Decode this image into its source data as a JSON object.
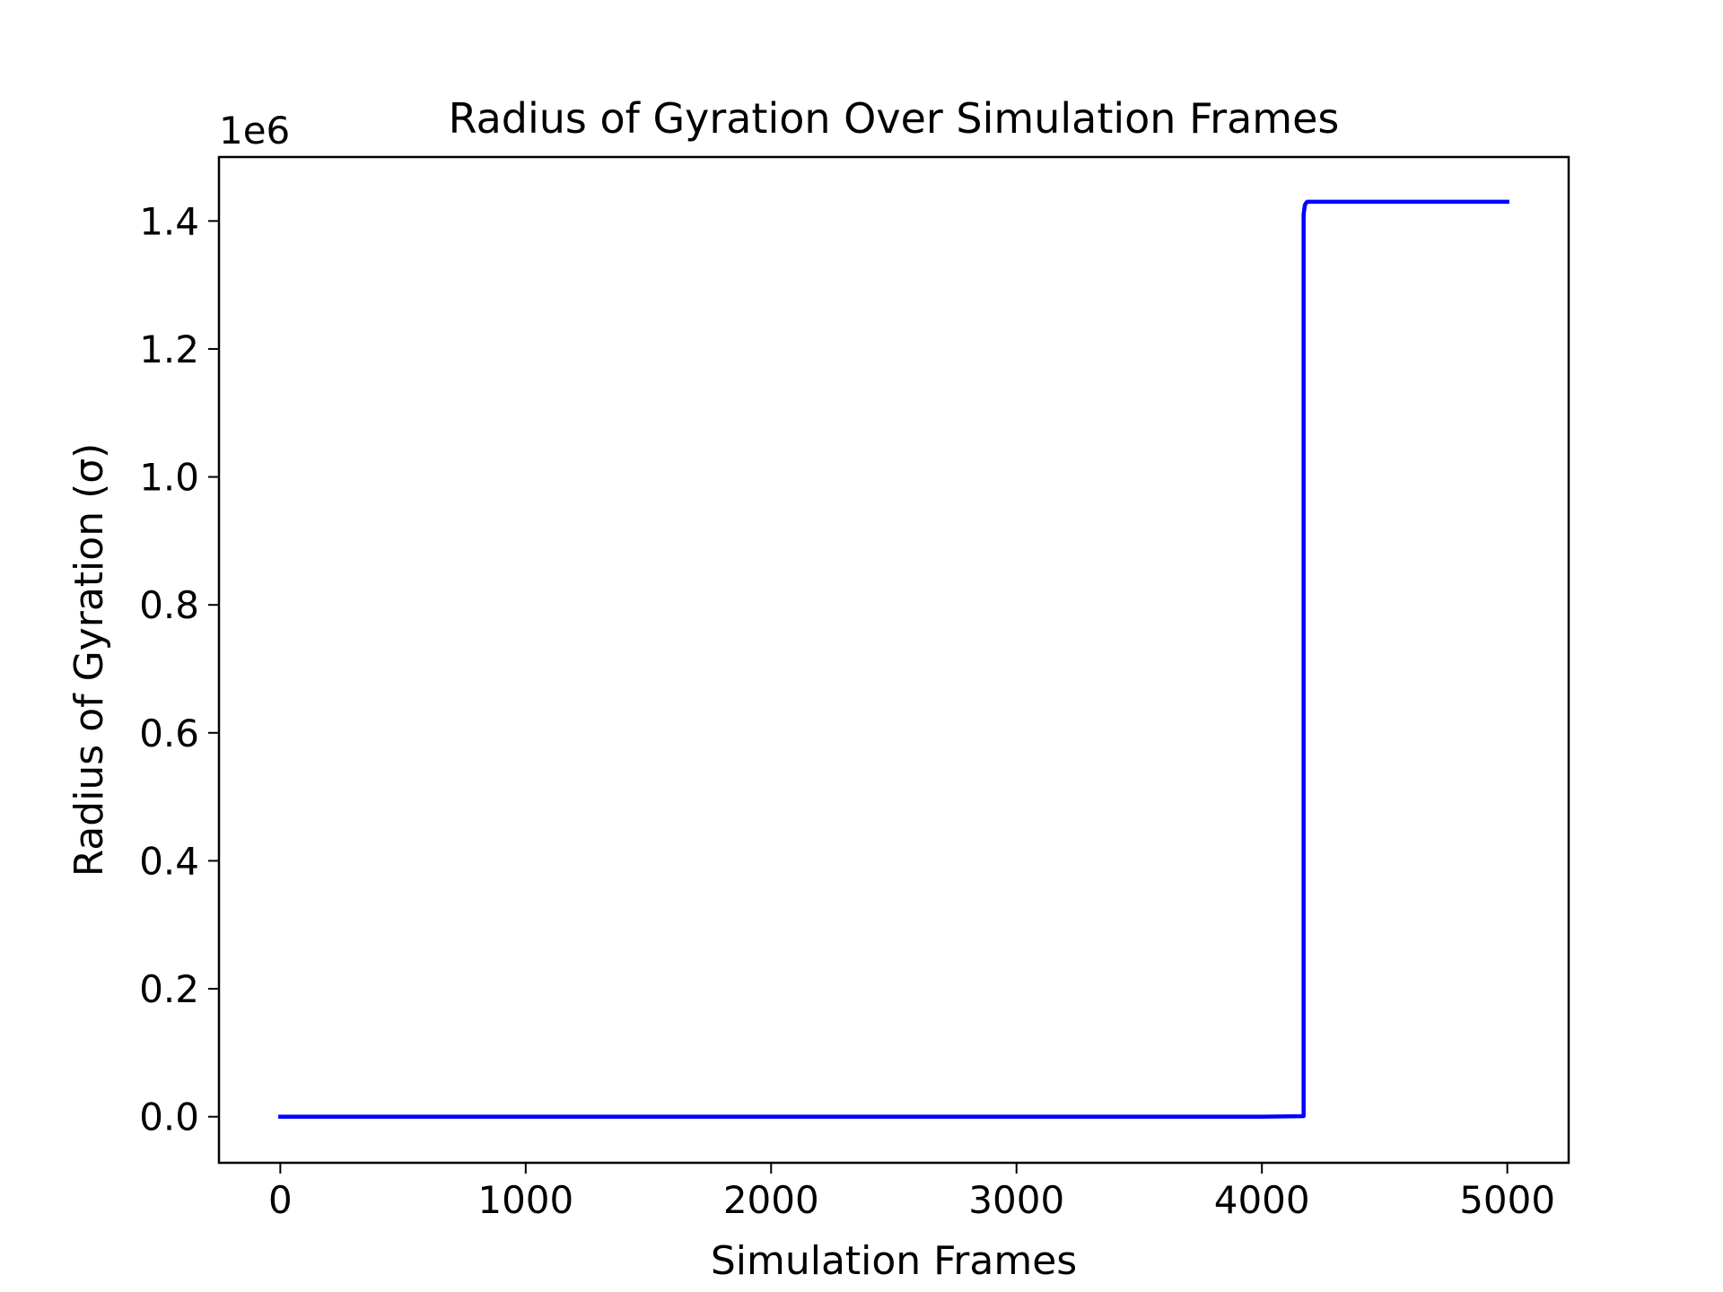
{
  "chart_data": {
    "type": "line",
    "title": "Radius of Gyration Over Simulation Frames",
    "xlabel": "Simulation Frames",
    "ylabel": "Radius of Gyration (σ)",
    "y_offset_label": "1e6",
    "xlim": [
      -250,
      5250
    ],
    "ylim": [
      -72000,
      1500000
    ],
    "x_ticks": [
      0,
      1000,
      2000,
      3000,
      4000,
      5000
    ],
    "x_tick_labels": [
      "0",
      "1000",
      "2000",
      "3000",
      "4000",
      "5000"
    ],
    "y_ticks": [
      0,
      200000,
      400000,
      600000,
      800000,
      1000000,
      1200000,
      1400000
    ],
    "y_tick_labels": [
      "0.0",
      "0.2",
      "0.4",
      "0.6",
      "0.8",
      "1.0",
      "1.2",
      "1.4"
    ],
    "grid": false,
    "series": [
      {
        "color": "#0000ff",
        "x": [
          0,
          4000,
          4170,
          4170,
          4175,
          4180,
          4185,
          4190,
          5000
        ],
        "y": [
          0,
          0,
          1000,
          1410000,
          1425000,
          1428000,
          1430000,
          1430000,
          1430000
        ]
      }
    ]
  }
}
